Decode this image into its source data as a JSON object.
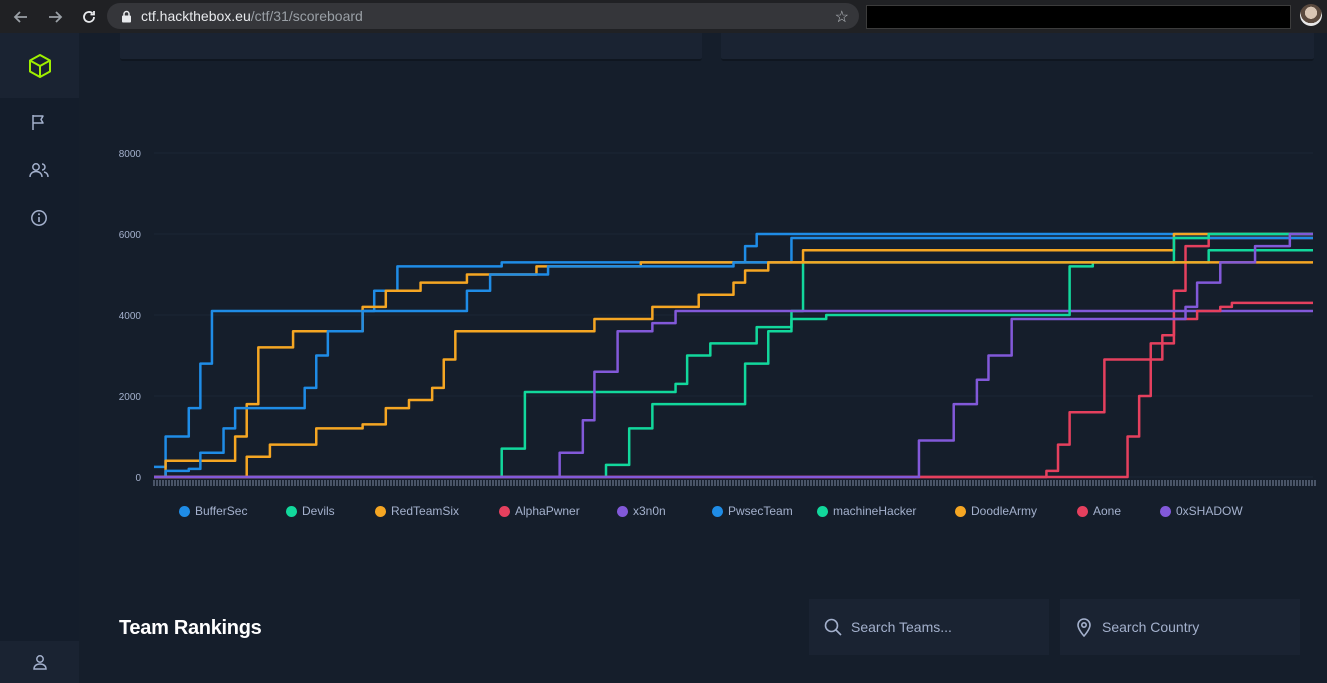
{
  "browser": {
    "url_domain": "ctf.hackthebox.eu",
    "url_path": "/ctf/31/scoreboard",
    "back_icon": "arrow-left-icon",
    "forward_icon": "arrow-right-icon",
    "reload_icon": "reload-icon",
    "bookmark_icon": "star-icon"
  },
  "sidebar": {
    "items": [
      {
        "name": "logo",
        "icon": "cube-icon",
        "color": "#9fef00"
      },
      {
        "name": "challenges",
        "icon": "flag-icon"
      },
      {
        "name": "teams",
        "icon": "users-icon"
      },
      {
        "name": "info",
        "icon": "info-icon"
      },
      {
        "name": "profile",
        "icon": "user-icon"
      }
    ]
  },
  "rankings": {
    "title": "Team Rankings",
    "search_teams_placeholder": "Search Teams...",
    "search_country_placeholder": "Search Country"
  },
  "chart_data": {
    "type": "line",
    "ylim": [
      0,
      8000
    ],
    "yticks": [
      "8000",
      "6000",
      "4000",
      "2000",
      "0"
    ],
    "xlim": [
      0,
      1
    ],
    "grid": true,
    "legend_position": "bottom",
    "series": [
      {
        "name": "BufferSec",
        "color": "#1f8ce6",
        "points": [
          [
            0,
            250
          ],
          [
            0.01,
            1000
          ],
          [
            0.03,
            1700
          ],
          [
            0.04,
            2800
          ],
          [
            0.05,
            4100
          ],
          [
            0.17,
            4100
          ],
          [
            0.19,
            4600
          ],
          [
            0.21,
            5200
          ],
          [
            0.29,
            5200
          ],
          [
            0.3,
            5300
          ],
          [
            0.42,
            5300
          ],
          [
            0.5,
            5300
          ],
          [
            0.51,
            5700
          ],
          [
            0.52,
            6000
          ],
          [
            1,
            6000
          ]
        ]
      },
      {
        "name": "Devils",
        "color": "#12d89c",
        "points": [
          [
            0,
            0
          ],
          [
            0.27,
            0
          ],
          [
            0.3,
            700
          ],
          [
            0.32,
            2100
          ],
          [
            0.39,
            2100
          ],
          [
            0.44,
            2100
          ],
          [
            0.45,
            2300
          ],
          [
            0.46,
            3000
          ],
          [
            0.48,
            3300
          ],
          [
            0.52,
            3700
          ],
          [
            0.55,
            4100
          ],
          [
            0.56,
            5300
          ],
          [
            0.67,
            5300
          ],
          [
            0.69,
            5300
          ],
          [
            0.9,
            5300
          ],
          [
            0.91,
            5600
          ],
          [
            1,
            5600
          ]
        ]
      },
      {
        "name": "RedTeamSix",
        "color": "#f5a623",
        "points": [
          [
            0,
            0
          ],
          [
            0.01,
            400
          ],
          [
            0.06,
            400
          ],
          [
            0.07,
            1000
          ],
          [
            0.08,
            1800
          ],
          [
            0.09,
            3200
          ],
          [
            0.12,
            3600
          ],
          [
            0.16,
            3600
          ],
          [
            0.18,
            4200
          ],
          [
            0.2,
            4600
          ],
          [
            0.23,
            4800
          ],
          [
            0.27,
            5000
          ],
          [
            0.33,
            5200
          ],
          [
            0.42,
            5300
          ],
          [
            0.55,
            5300
          ],
          [
            0.56,
            5600
          ],
          [
            0.86,
            5600
          ],
          [
            0.88,
            6000
          ],
          [
            1,
            6000
          ]
        ]
      },
      {
        "name": "AlphaPwner",
        "color": "#e5405e",
        "points": [
          [
            0,
            0
          ],
          [
            0.76,
            0
          ],
          [
            0.77,
            150
          ],
          [
            0.78,
            800
          ],
          [
            0.79,
            1600
          ],
          [
            0.82,
            2900
          ],
          [
            0.85,
            2900
          ],
          [
            0.87,
            3500
          ],
          [
            0.88,
            4600
          ],
          [
            0.89,
            5700
          ],
          [
            0.91,
            5900
          ],
          [
            0.95,
            5900
          ],
          [
            1,
            5900
          ]
        ]
      },
      {
        "name": "x3n0n",
        "color": "#8259d9",
        "points": [
          [
            0,
            0
          ],
          [
            0.34,
            0
          ],
          [
            0.35,
            600
          ],
          [
            0.37,
            1400
          ],
          [
            0.38,
            2600
          ],
          [
            0.4,
            3600
          ],
          [
            0.43,
            3800
          ],
          [
            0.45,
            4100
          ],
          [
            0.84,
            4100
          ],
          [
            1,
            4100
          ]
        ]
      },
      {
        "name": "PwsecTeam",
        "color": "#1f8ce6",
        "points": [
          [
            0,
            0
          ],
          [
            0.01,
            150
          ],
          [
            0.03,
            200
          ],
          [
            0.04,
            600
          ],
          [
            0.06,
            1200
          ],
          [
            0.07,
            1700
          ],
          [
            0.11,
            1700
          ],
          [
            0.13,
            2200
          ],
          [
            0.14,
            3000
          ],
          [
            0.15,
            3600
          ],
          [
            0.18,
            4100
          ],
          [
            0.21,
            4100
          ],
          [
            0.25,
            4100
          ],
          [
            0.27,
            4600
          ],
          [
            0.29,
            5000
          ],
          [
            0.34,
            5200
          ],
          [
            0.48,
            5200
          ],
          [
            0.5,
            5300
          ],
          [
            0.52,
            5300
          ],
          [
            0.55,
            5900
          ],
          [
            1,
            5900
          ]
        ]
      },
      {
        "name": "machineHacker",
        "color": "#12d89c",
        "points": [
          [
            0,
            0
          ],
          [
            0.38,
            0
          ],
          [
            0.39,
            300
          ],
          [
            0.41,
            1200
          ],
          [
            0.43,
            1800
          ],
          [
            0.48,
            1800
          ],
          [
            0.51,
            2800
          ],
          [
            0.53,
            3600
          ],
          [
            0.55,
            3900
          ],
          [
            0.58,
            4000
          ],
          [
            0.72,
            4000
          ],
          [
            0.78,
            4000
          ],
          [
            0.79,
            5200
          ],
          [
            0.81,
            5300
          ],
          [
            0.86,
            5300
          ],
          [
            0.88,
            5900
          ],
          [
            0.91,
            6000
          ],
          [
            1,
            6000
          ]
        ]
      },
      {
        "name": "DoodleArmy",
        "color": "#f5a623",
        "points": [
          [
            0,
            0
          ],
          [
            0.06,
            0
          ],
          [
            0.08,
            500
          ],
          [
            0.1,
            800
          ],
          [
            0.14,
            1200
          ],
          [
            0.18,
            1300
          ],
          [
            0.2,
            1700
          ],
          [
            0.22,
            1900
          ],
          [
            0.24,
            2200
          ],
          [
            0.25,
            2900
          ],
          [
            0.26,
            3600
          ],
          [
            0.37,
            3600
          ],
          [
            0.38,
            3900
          ],
          [
            0.43,
            4200
          ],
          [
            0.47,
            4500
          ],
          [
            0.5,
            4800
          ],
          [
            0.51,
            5100
          ],
          [
            0.53,
            5300
          ],
          [
            1,
            5300
          ]
        ]
      },
      {
        "name": "Aone",
        "color": "#e5405e",
        "points": [
          [
            0,
            0
          ],
          [
            0.82,
            0
          ],
          [
            0.84,
            1000
          ],
          [
            0.85,
            2000
          ],
          [
            0.86,
            3300
          ],
          [
            0.88,
            3900
          ],
          [
            0.9,
            4100
          ],
          [
            0.92,
            4200
          ],
          [
            0.93,
            4300
          ],
          [
            1,
            4300
          ]
        ]
      },
      {
        "name": "0xSHADOW",
        "color": "#8259d9",
        "points": [
          [
            0,
            0
          ],
          [
            0.65,
            0
          ],
          [
            0.66,
            900
          ],
          [
            0.67,
            900
          ],
          [
            0.69,
            1800
          ],
          [
            0.71,
            2400
          ],
          [
            0.72,
            3000
          ],
          [
            0.74,
            3900
          ],
          [
            0.85,
            3900
          ],
          [
            0.89,
            4200
          ],
          [
            0.9,
            4800
          ],
          [
            0.92,
            5300
          ],
          [
            0.95,
            5700
          ],
          [
            0.98,
            6000
          ],
          [
            1,
            6000
          ]
        ]
      }
    ]
  }
}
